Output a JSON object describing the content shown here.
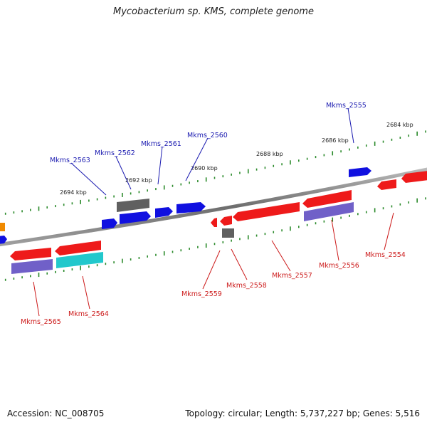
{
  "title": "Mycobacterium sp. KMS, complete genome",
  "footer": {
    "accession": "Accession: NC_008705",
    "summary": "Topology: circular; Length: 5,737,227 bp; Genes: 5,516"
  },
  "colors": {
    "forward_gene": "#1010e0",
    "reverse_gene": "#ee1a1a",
    "pseudo": "#606060",
    "rna": "#22c8cc",
    "cds_track": "#7060c8",
    "tick": "#2a8a2a",
    "backbone": "#888888",
    "label_fwd": "#1a1ab0",
    "label_rev": "#cc1a1a"
  },
  "scale_labels": [
    "2684 kbp",
    "2686 kbp",
    "2688 kbp",
    "2690 kbp",
    "2692 kbp",
    "2694 kbp"
  ],
  "upper_genes": [
    "Mkms_2555",
    "Mkms_2560",
    "Mkms_2561",
    "Mkms_2562",
    "Mkms_2563"
  ],
  "lower_genes": [
    "Mkms_2554",
    "Mkms_2556",
    "Mkms_2557",
    "Mkms_2558",
    "Mkms_2559",
    "Mkms_2564",
    "Mkms_2565"
  ]
}
